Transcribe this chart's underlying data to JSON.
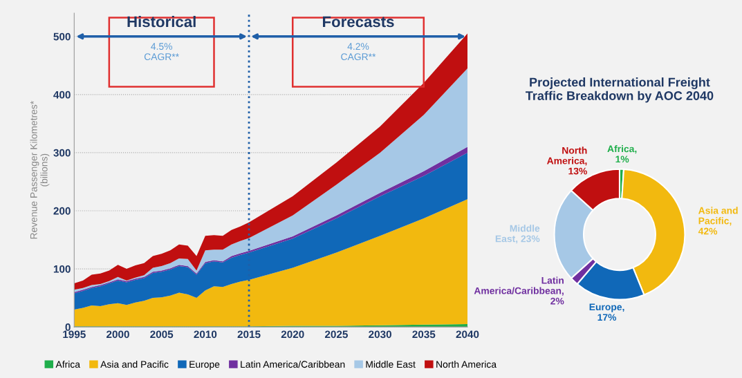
{
  "chart_data": [
    {
      "type": "area",
      "stacked": true,
      "x": [
        1995,
        1996,
        1997,
        1998,
        1999,
        2000,
        2001,
        2002,
        2003,
        2004,
        2005,
        2006,
        2007,
        2008,
        2009,
        2010,
        2011,
        2012,
        2013,
        2014,
        2015,
        2020,
        2025,
        2030,
        2035,
        2040
      ],
      "series": [
        {
          "name": "Africa",
          "color": "#1fae4b",
          "values": [
            1,
            1,
            1,
            1,
            1,
            1,
            1,
            1,
            1,
            1,
            1,
            1,
            1,
            1,
            1,
            1,
            1,
            1,
            1,
            1,
            1,
            2,
            2,
            3,
            4,
            5
          ]
        },
        {
          "name": "Asia and Pacific",
          "color": "#f2b90f",
          "values": [
            29,
            32,
            36,
            35,
            38,
            40,
            37,
            41,
            44,
            49,
            50,
            53,
            58,
            55,
            49,
            62,
            69,
            68,
            73,
            77,
            80,
            100,
            126,
            154,
            183,
            215
          ]
        },
        {
          "name": "Europe",
          "color": "#1068b8",
          "values": [
            28,
            29,
            30,
            34,
            36,
            39,
            39,
            39,
            39,
            43,
            44,
            45,
            46,
            47,
            40,
            47,
            43,
            42,
            45,
            46,
            47,
            50,
            59,
            68,
            73,
            80
          ]
        },
        {
          "name": "Latin America/Caribbean",
          "color": "#7030a0",
          "values": [
            2,
            2,
            2,
            2,
            2,
            2,
            2,
            2,
            2,
            2,
            2,
            2,
            2,
            2,
            2,
            2,
            2,
            2,
            3,
            3,
            3,
            4,
            5,
            6,
            8,
            10
          ]
        },
        {
          "name": "Middle East",
          "color": "#a6c8e6",
          "values": [
            4,
            3,
            3,
            2,
            2,
            4,
            1,
            2,
            3,
            7,
            8,
            9,
            11,
            12,
            5,
            20,
            18,
            20,
            20,
            21,
            22,
            36,
            53,
            69,
            97,
            135
          ]
        },
        {
          "name": "North America",
          "color": "#c00f10",
          "values": [
            11,
            13,
            18,
            18,
            18,
            21,
            20,
            21,
            21,
            20,
            21,
            22,
            24,
            23,
            25,
            25,
            25,
            24,
            25,
            25,
            27,
            33,
            38,
            45,
            55,
            60
          ]
        }
      ],
      "ylabel": "Revenue Passenger Kilometres*\n(bilions)",
      "xlim": [
        1995,
        2040
      ],
      "xticks": [
        1995,
        2000,
        2005,
        2010,
        2015,
        2020,
        2025,
        2030,
        2035,
        2040
      ],
      "ylim": [
        0,
        540
      ],
      "yticks": [
        0,
        100,
        200,
        300,
        400,
        500
      ],
      "grid": "y",
      "legend": "bottom",
      "ref_lines": [
        {
          "axis": "x",
          "value": 2015,
          "color": "#1f5fa8",
          "line_style": "dotted"
        }
      ],
      "annotations": [
        "Historical",
        "4.5%\nCAGR**",
        "Forecasts",
        "4.2%\nCAGR**"
      ]
    },
    {
      "type": "donut",
      "title": "Projected International Freight\nTraffic Breakdown by AOC 2040",
      "values": [
        1,
        42,
        17,
        2,
        23,
        13
      ],
      "colors": [
        "#1fae4b",
        "#f2b90f",
        "#1068b8",
        "#7030a0",
        "#a6c8e6",
        "#c00f10"
      ],
      "value_labels": [
        "Africa, 1%",
        "Asia and Pacific, 42%",
        "Europe, 17%",
        "Latin America/Caribbean, 2%",
        "Middle East, 23%",
        "North America, 13%"
      ]
    }
  ]
}
